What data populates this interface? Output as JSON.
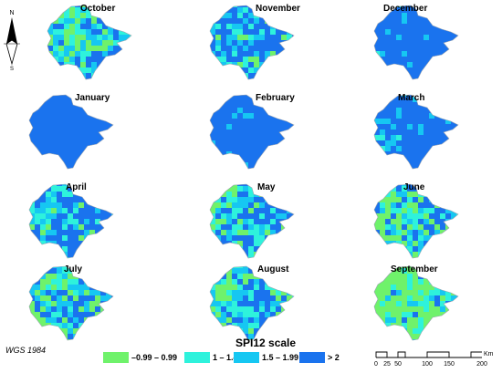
{
  "colors": {
    "class_1": "#6ff26b",
    "class_2": "#2ef2dc",
    "class_3": "#16c7f2",
    "class_4": "#1a73ee"
  },
  "months": [
    {
      "label": "October",
      "mix": [
        0.2,
        0.2,
        0.3,
        0.3
      ]
    },
    {
      "label": "November",
      "mix": [
        0.05,
        0.1,
        0.25,
        0.6
      ]
    },
    {
      "label": "December",
      "mix": [
        0.0,
        0.02,
        0.06,
        0.92
      ]
    },
    {
      "label": "January",
      "mix": [
        0.0,
        0.0,
        0.0,
        1.0
      ]
    },
    {
      "label": "February",
      "mix": [
        0.0,
        0.0,
        0.03,
        0.97
      ]
    },
    {
      "label": "March",
      "mix": [
        0.0,
        0.05,
        0.15,
        0.8
      ]
    },
    {
      "label": "April",
      "mix": [
        0.05,
        0.15,
        0.2,
        0.6
      ]
    },
    {
      "label": "May",
      "mix": [
        0.1,
        0.2,
        0.25,
        0.45
      ]
    },
    {
      "label": "June",
      "mix": [
        0.25,
        0.2,
        0.25,
        0.3
      ]
    },
    {
      "label": "July",
      "mix": [
        0.25,
        0.15,
        0.25,
        0.35
      ]
    },
    {
      "label": "August",
      "mix": [
        0.25,
        0.2,
        0.25,
        0.3
      ]
    },
    {
      "label": "September",
      "mix": [
        0.6,
        0.25,
        0.1,
        0.05
      ]
    }
  ],
  "north_arrow": {
    "n": "N",
    "s": "S"
  },
  "crs": "WGS 1984",
  "legend": {
    "title": "SPI12 scale",
    "items": [
      {
        "label": "–0.99 – 0.99",
        "color": "#6ff26b"
      },
      {
        "label": "1 – 1.49",
        "color": "#2ef2dc"
      },
      {
        "label": "1.5 – 1.99",
        "color": "#16c7f2"
      },
      {
        "label": "> 2",
        "color": "#1a73ee"
      }
    ]
  },
  "scale_bar": {
    "unit": "Km",
    "ticks": [
      "0",
      "25",
      "50",
      "100",
      "150",
      "200"
    ]
  }
}
